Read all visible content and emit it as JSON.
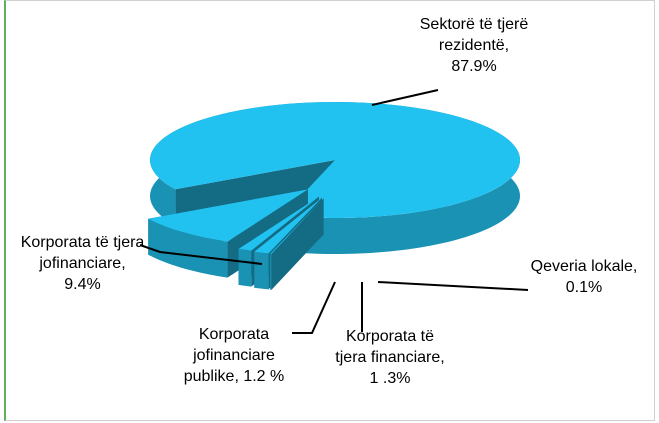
{
  "chart_data": {
    "type": "pie",
    "three_d": true,
    "categories": [
      "Sektorë të tjerë rezidentë, 87.9%",
      "Korporata të tjera jofinanciare, 9.4%",
      "Korporata jofinanciare publike, 1.2 %",
      "Korporata të tjera financiare, 1 .3%",
      "Qeveria lokale, 0.1%"
    ],
    "values": [
      87.9,
      9.4,
      1.2,
      1.3,
      0.1
    ],
    "color": "#22c2f0"
  }
}
